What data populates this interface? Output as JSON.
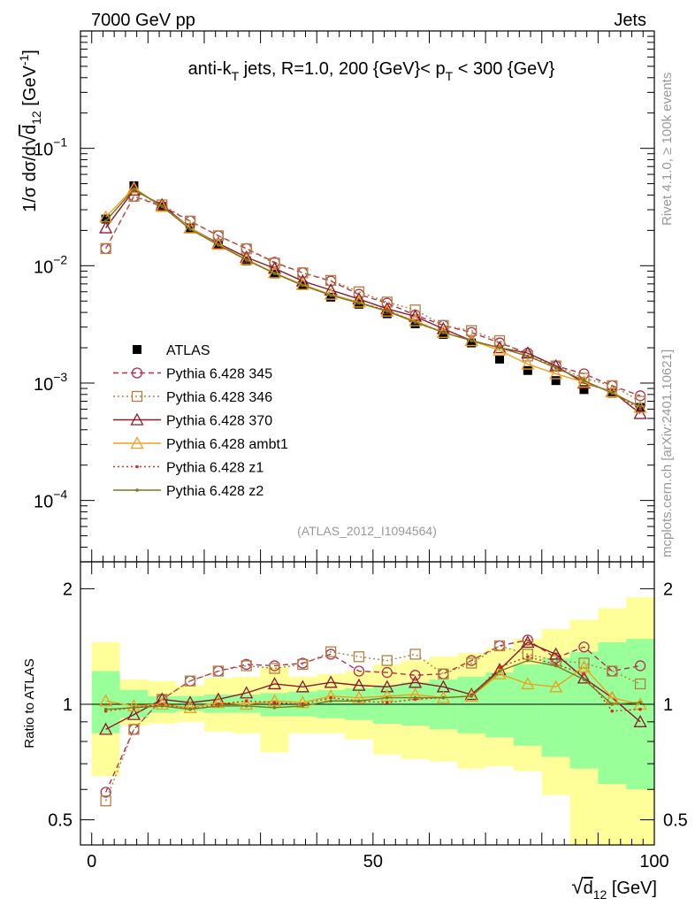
{
  "header": {
    "energy_label": "7000 GeV pp",
    "category_label": "Jets"
  },
  "side_labels": {
    "rivet": "Rivet 4.1.0, ≥ 100k events",
    "source": "mcplots.cern.ch [arXiv:2401.10621]"
  },
  "chart_data": [
    {
      "type": "line",
      "panel": "main",
      "yscale": "log",
      "title": {
        "main": "anti-k",
        "main_sub": "T",
        "mid": " jets, R=1.0, 200 {GeV}< p",
        "mid_sub": "T",
        "end": " < 300 {GeV}"
      },
      "watermark": "(ATLAS_2012_I1094564)",
      "ylabel": {
        "pre": "1/σ dσ/d",
        "root": "√",
        "d": "d",
        "d_sub": "12",
        "unit_pre": " [GeV",
        "unit_sup": "-1",
        "unit_post": "]"
      },
      "ylim": [
        3e-05,
        1.0
      ],
      "xlim": [
        -2,
        100
      ],
      "ytick_labels": [
        {
          "value": 0.1,
          "base": "10",
          "exp": "−1"
        },
        {
          "value": 0.01,
          "base": "10",
          "exp": "−2"
        },
        {
          "value": 0.001,
          "base": "10",
          "exp": "−3"
        },
        {
          "value": 0.0001,
          "base": "10",
          "exp": "−4"
        }
      ],
      "legend_position": "lower-left",
      "x": [
        2.5,
        7.5,
        12.5,
        17.5,
        22.5,
        27.5,
        32.5,
        37.5,
        42.5,
        47.5,
        52.5,
        57.5,
        62.5,
        67.5,
        72.5,
        77.5,
        82.5,
        87.5,
        92.5,
        97.5
      ],
      "series": [
        {
          "name": "ATLAS",
          "values": [
            0.025,
            0.048,
            0.032,
            0.021,
            0.015,
            0.011,
            0.0085,
            0.0068,
            0.0054,
            0.0047,
            0.0039,
            0.0032,
            0.0026,
            0.0022,
            0.0016,
            0.00128,
            0.00105,
            0.00088,
            0.00082,
            0.00062
          ]
        },
        {
          "name": "Pythia 6.428 345",
          "values": [
            0.014,
            0.039,
            0.032,
            0.024,
            0.018,
            0.014,
            0.0107,
            0.0087,
            0.0074,
            0.0057,
            0.0048,
            0.0038,
            0.0031,
            0.0027,
            0.0022,
            0.0018,
            0.0014,
            0.0012,
            0.00095,
            0.00078
          ]
        },
        {
          "name": "Pythia 6.428 346",
          "values": [
            0.014,
            0.039,
            0.033,
            0.024,
            0.018,
            0.0139,
            0.0105,
            0.0087,
            0.0075,
            0.006,
            0.0049,
            0.0042,
            0.0031,
            0.0028,
            0.0023,
            0.0017,
            0.0014,
            0.0011,
            0.00095,
            0.0007
          ]
        },
        {
          "name": "Pythia 6.428 370",
          "values": [
            0.021,
            0.044,
            0.033,
            0.021,
            0.0155,
            0.0118,
            0.0095,
            0.0074,
            0.0062,
            0.0052,
            0.0043,
            0.0037,
            0.0029,
            0.0023,
            0.002,
            0.0018,
            0.0014,
            0.001,
            0.00085,
            0.00055
          ]
        },
        {
          "name": "Pythia 6.428 ambt1",
          "values": [
            0.026,
            0.046,
            0.032,
            0.021,
            0.0152,
            0.0113,
            0.0087,
            0.0069,
            0.0057,
            0.0049,
            0.0041,
            0.0034,
            0.0027,
            0.0023,
            0.0019,
            0.00145,
            0.0012,
            0.00102,
            0.00084,
            0.00062
          ]
        },
        {
          "name": "Pythia 6.428 z1",
          "values": [
            0.024,
            0.045,
            0.032,
            0.0205,
            0.015,
            0.0112,
            0.0086,
            0.0068,
            0.0056,
            0.0048,
            0.0042,
            0.0033,
            0.0027,
            0.0023,
            0.002,
            0.0017,
            0.00135,
            0.00105,
            0.00082,
            0.0006
          ]
        },
        {
          "name": "Pythia 6.428 z2",
          "values": [
            0.024,
            0.045,
            0.032,
            0.0205,
            0.015,
            0.0112,
            0.0086,
            0.0068,
            0.0056,
            0.0048,
            0.0041,
            0.0033,
            0.0027,
            0.0023,
            0.002,
            0.0017,
            0.00135,
            0.00105,
            0.00082,
            0.00063
          ]
        }
      ]
    },
    {
      "type": "line",
      "panel": "ratio",
      "yscale": "log",
      "ylabel": "Ratio to ATLAS",
      "ylim": [
        0.43,
        2.35
      ],
      "xlim": [
        -2,
        100
      ],
      "ytick_labels": [
        {
          "value": 0.5,
          "label": "0.5"
        },
        {
          "value": 1,
          "label": "1"
        },
        {
          "value": 2,
          "label": "2"
        }
      ],
      "xtick_labels": [
        {
          "value": 0,
          "label": "0"
        },
        {
          "value": 50,
          "label": "50"
        },
        {
          "value": 100,
          "label": "100"
        }
      ],
      "xlabel": {
        "root": "√",
        "d": "d",
        "d_sub": "12",
        "unit": " [GeV]"
      },
      "x": [
        2.5,
        7.5,
        12.5,
        17.5,
        22.5,
        27.5,
        32.5,
        37.5,
        42.5,
        47.5,
        52.5,
        57.5,
        62.5,
        67.5,
        72.5,
        77.5,
        82.5,
        87.5,
        92.5,
        97.5
      ],
      "bands": {
        "inner": [
          [
            0.84,
            1.22
          ],
          [
            0.92,
            1.09
          ],
          [
            0.95,
            1.05
          ],
          [
            0.96,
            1.05
          ],
          [
            0.95,
            1.06
          ],
          [
            0.95,
            1.06
          ],
          [
            0.93,
            1.07
          ],
          [
            0.93,
            1.08
          ],
          [
            0.92,
            1.09
          ],
          [
            0.91,
            1.1
          ],
          [
            0.89,
            1.12
          ],
          [
            0.88,
            1.14
          ],
          [
            0.86,
            1.16
          ],
          [
            0.84,
            1.18
          ],
          [
            0.82,
            1.21
          ],
          [
            0.78,
            1.27
          ],
          [
            0.73,
            1.32
          ],
          [
            0.68,
            1.37
          ],
          [
            0.62,
            1.45
          ],
          [
            0.6,
            1.48
          ]
        ],
        "outer": [
          [
            0.65,
            1.45
          ],
          [
            0.88,
            1.16
          ],
          [
            0.89,
            1.15
          ],
          [
            0.9,
            1.12
          ],
          [
            0.85,
            1.17
          ],
          [
            0.84,
            1.18
          ],
          [
            0.75,
            1.25
          ],
          [
            0.84,
            1.18
          ],
          [
            0.84,
            1.2
          ],
          [
            0.81,
            1.22
          ],
          [
            0.74,
            1.27
          ],
          [
            0.72,
            1.3
          ],
          [
            0.71,
            1.33
          ],
          [
            0.68,
            1.36
          ],
          [
            0.69,
            1.4
          ],
          [
            0.67,
            1.48
          ],
          [
            0.58,
            1.57
          ],
          [
            0.42,
            1.66
          ],
          [
            0.4,
            1.78
          ],
          [
            0.36,
            1.9
          ]
        ]
      },
      "series": [
        {
          "name": "Pythia 6.428 345",
          "values": [
            0.59,
            0.86,
            1.03,
            1.15,
            1.22,
            1.27,
            1.26,
            1.28,
            1.35,
            1.22,
            1.21,
            1.19,
            1.2,
            1.3,
            1.42,
            1.47,
            1.32,
            1.41,
            1.22,
            1.26
          ]
        },
        {
          "name": "Pythia 6.428 346",
          "values": [
            0.56,
            0.86,
            1.03,
            1.15,
            1.22,
            1.26,
            1.24,
            1.27,
            1.37,
            1.33,
            1.3,
            1.35,
            1.2,
            1.28,
            1.42,
            1.35,
            1.3,
            1.28,
            1.22,
            1.13
          ]
        },
        {
          "name": "Pythia 6.428 370",
          "values": [
            0.86,
            0.94,
            1.03,
            1.01,
            1.03,
            1.07,
            1.13,
            1.11,
            1.14,
            1.12,
            1.11,
            1.14,
            1.11,
            1.06,
            1.23,
            1.45,
            1.35,
            1.17,
            1.04,
            0.9
          ]
        },
        {
          "name": "Pythia 6.428 ambt1",
          "values": [
            1.02,
            0.99,
            1.0,
            0.98,
            1.01,
            1.0,
            1.02,
            1.01,
            1.05,
            1.04,
            1.05,
            1.06,
            1.04,
            1.05,
            1.2,
            1.13,
            1.11,
            1.25,
            1.04,
            1.0
          ]
        },
        {
          "name": "Pythia 6.428 z1",
          "values": [
            0.96,
            0.98,
            1.0,
            0.97,
            1.0,
            1.02,
            1.01,
            1.0,
            1.04,
            1.02,
            1.01,
            1.03,
            1.04,
            1.05,
            1.25,
            1.33,
            1.27,
            1.2,
            0.96,
            0.97
          ]
        },
        {
          "name": "Pythia 6.428 z2",
          "values": [
            0.97,
            0.98,
            0.99,
            0.97,
            0.99,
            0.99,
            0.98,
            0.99,
            1.02,
            1.02,
            1.04,
            1.04,
            1.04,
            1.05,
            1.22,
            1.3,
            1.26,
            1.16,
            1.0,
            1.01
          ]
        }
      ]
    }
  ],
  "styles": [
    {
      "name": "ATLAS",
      "color": "#000000",
      "marker": "square-filled",
      "dash": "",
      "line": false
    },
    {
      "name": "Pythia 6.428 345",
      "color": "#b03050",
      "marker": "circle-open",
      "dash": "6,4",
      "line": true
    },
    {
      "name": "Pythia 6.428 346",
      "color": "#b08040",
      "marker": "square-open",
      "dash": "2,3",
      "line": true
    },
    {
      "name": "Pythia 6.428 370",
      "color": "#8b1a2b",
      "marker": "triangle-open",
      "dash": "",
      "line": true
    },
    {
      "name": "Pythia 6.428 ambt1",
      "color": "#f0a020",
      "marker": "triangle-open",
      "dash": "",
      "line": true
    },
    {
      "name": "Pythia 6.428 z1",
      "color": "#d03020",
      "marker": "dot",
      "dash": "2,3",
      "line": true
    },
    {
      "name": "Pythia 6.428 z2",
      "color": "#7a7a20",
      "marker": "dot",
      "dash": "",
      "line": true
    }
  ],
  "band_colors": {
    "inner": "#99ff99",
    "outer": "#ffff99"
  }
}
